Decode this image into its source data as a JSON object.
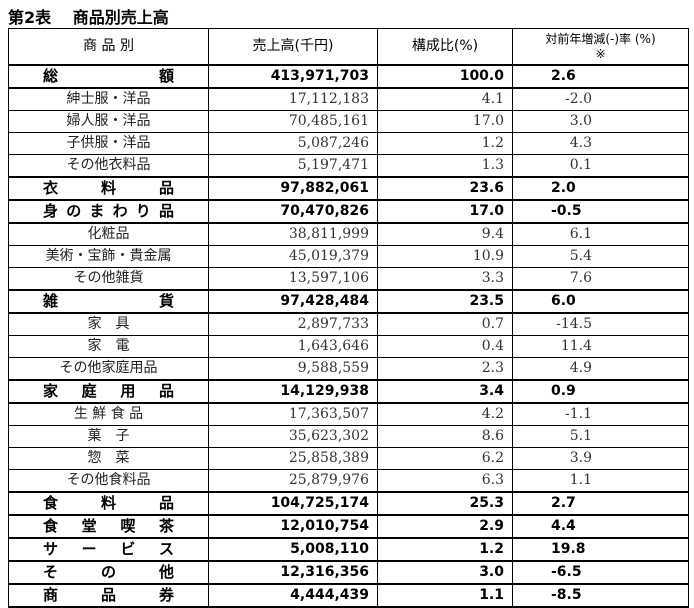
{
  "title": "第2表　 商品別売上高",
  "headers": {
    "category": "商 品 別",
    "sales": "売上高(千円)",
    "share": "構成比(%)",
    "change": "対前年増減(-)率 (%)",
    "change_note": "※"
  },
  "rows": [
    {
      "label": "総額",
      "sales": "413,971,703",
      "share": "100.0",
      "change": "2.6",
      "bold": true
    },
    {
      "label": "紳士服・洋品",
      "sales": "17,112,183",
      "share": "4.1",
      "change": "-2.0"
    },
    {
      "label": "婦人服・洋品",
      "sales": "70,485,161",
      "share": "17.0",
      "change": "3.0"
    },
    {
      "label": "子供服・洋品",
      "sales": "5,087,246",
      "share": "1.2",
      "change": "4.3"
    },
    {
      "label": "その他衣料品",
      "sales": "5,197,471",
      "share": "1.3",
      "change": "0.1"
    },
    {
      "label": "衣料品",
      "sales": "97,882,061",
      "share": "23.6",
      "change": "2.0",
      "bold": true
    },
    {
      "label": "身のまわり品",
      "sales": "70,470,826",
      "share": "17.0",
      "change": "-0.5",
      "bold": true
    },
    {
      "label": "化粧品",
      "sales": "38,811,999",
      "share": "9.4",
      "change": "6.1"
    },
    {
      "label": "美術・宝飾・貴金属",
      "sales": "45,019,379",
      "share": "10.9",
      "change": "5.4"
    },
    {
      "label": "その他雑貨",
      "sales": "13,597,106",
      "share": "3.3",
      "change": "7.6"
    },
    {
      "label": "雑貨",
      "sales": "97,428,484",
      "share": "23.5",
      "change": "6.0",
      "bold": true
    },
    {
      "label": "家　具",
      "sales": "2,897,733",
      "share": "0.7",
      "change": "-14.5"
    },
    {
      "label": "家　電",
      "sales": "1,643,646",
      "share": "0.4",
      "change": "11.4"
    },
    {
      "label": "その他家庭用品",
      "sales": "9,588,559",
      "share": "2.3",
      "change": "4.9"
    },
    {
      "label": "家庭用品",
      "sales": "14,129,938",
      "share": "3.4",
      "change": "0.9",
      "bold": true
    },
    {
      "label": "生 鮮 食 品",
      "sales": "17,363,507",
      "share": "4.2",
      "change": "-1.1"
    },
    {
      "label": "菓　子",
      "sales": "35,623,302",
      "share": "8.6",
      "change": "5.1"
    },
    {
      "label": "惣　菜",
      "sales": "25,858,389",
      "share": "6.2",
      "change": "3.9"
    },
    {
      "label": "その他食料品",
      "sales": "25,879,976",
      "share": "6.3",
      "change": "1.1"
    },
    {
      "label": "食料品",
      "sales": "104,725,174",
      "share": "25.3",
      "change": "2.7",
      "bold": true
    },
    {
      "label": "食堂喫茶",
      "sales": "12,010,754",
      "share": "2.9",
      "change": "4.4",
      "bold": true
    },
    {
      "label": "サービス",
      "sales": "5,008,110",
      "share": "1.2",
      "change": "19.8",
      "bold": true
    },
    {
      "label": "その他",
      "sales": "12,316,356",
      "share": "3.0",
      "change": "-6.5",
      "bold": true
    },
    {
      "label": "商品券",
      "sales": "4,444,439",
      "share": "1.1",
      "change": "-8.5",
      "bold": true
    }
  ]
}
